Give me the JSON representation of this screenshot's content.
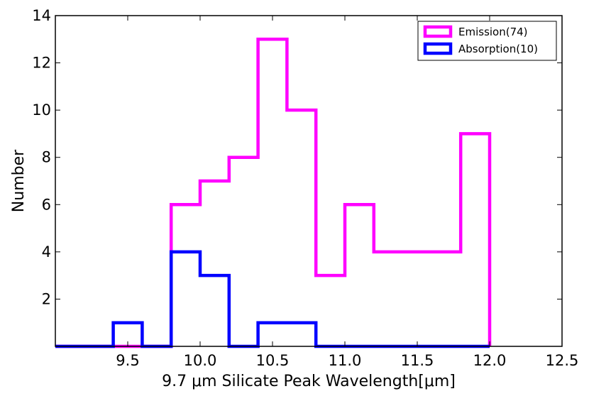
{
  "chart_data": {
    "type": "histogram",
    "title": "",
    "xlabel": "9.7 μm Silicate Peak Wavelength[μm]",
    "ylabel": "Number",
    "xlim": [
      9.0,
      12.5
    ],
    "ylim": [
      0,
      14
    ],
    "xticks": [
      9.5,
      10.0,
      10.5,
      11.0,
      11.5,
      12.0,
      12.5
    ],
    "xtick_labels": [
      "9.5",
      "10.0",
      "10.5",
      "11.0",
      "11.5",
      "12.0",
      "12.5"
    ],
    "yticks": [
      2,
      4,
      6,
      8,
      10,
      12,
      14
    ],
    "ytick_labels": [
      "2",
      "4",
      "6",
      "8",
      "10",
      "12",
      "14"
    ],
    "bin_edges": [
      9.0,
      9.2,
      9.4,
      9.6,
      9.8,
      10.0,
      10.2,
      10.4,
      10.6,
      10.8,
      11.0,
      11.2,
      11.4,
      11.6,
      11.8,
      12.0
    ],
    "series": [
      {
        "name": "Emission(74)",
        "color": "#ff00ff",
        "counts": [
          0,
          0,
          0,
          0,
          6,
          7,
          8,
          13,
          10,
          3,
          6,
          4,
          4,
          4,
          9
        ]
      },
      {
        "name": "Absorption(10)",
        "color": "#0000ff",
        "counts": [
          0,
          0,
          1,
          0,
          4,
          3,
          0,
          1,
          1,
          0,
          0,
          0,
          0,
          0,
          0
        ]
      }
    ],
    "legend_position": "top-right",
    "grid": false
  }
}
